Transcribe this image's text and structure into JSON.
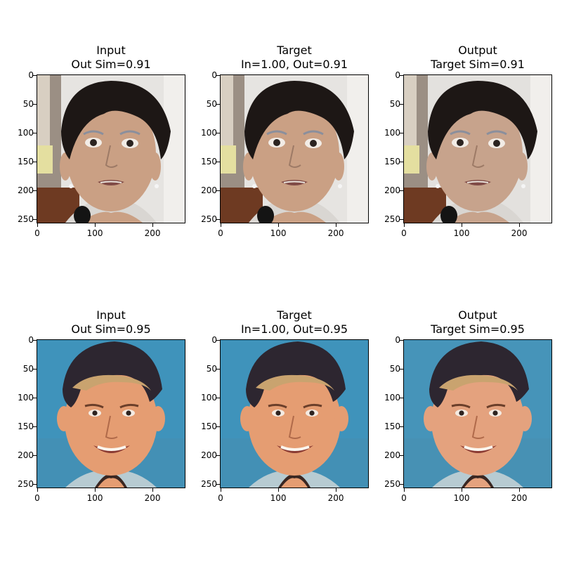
{
  "figure": {
    "rows": [
      {
        "subject": "woman",
        "panels": [
          {
            "title_line1": "Input",
            "title_line2": "Out Sim=0.91"
          },
          {
            "title_line1": "Target",
            "title_line2": "In=1.00, Out=0.91"
          },
          {
            "title_line1": "Output",
            "title_line2": "Target Sim=0.91"
          }
        ]
      },
      {
        "subject": "boy",
        "panels": [
          {
            "title_line1": "Input",
            "title_line2": "Out Sim=0.95"
          },
          {
            "title_line1": "Target",
            "title_line2": "In=1.00, Out=0.95"
          },
          {
            "title_line1": "Output",
            "title_line2": "Target Sim=0.95"
          }
        ]
      }
    ],
    "axes": {
      "x_ticks": [
        "0",
        "100",
        "200"
      ],
      "y_ticks": [
        "0",
        "50",
        "100",
        "150",
        "200",
        "250"
      ]
    }
  }
}
